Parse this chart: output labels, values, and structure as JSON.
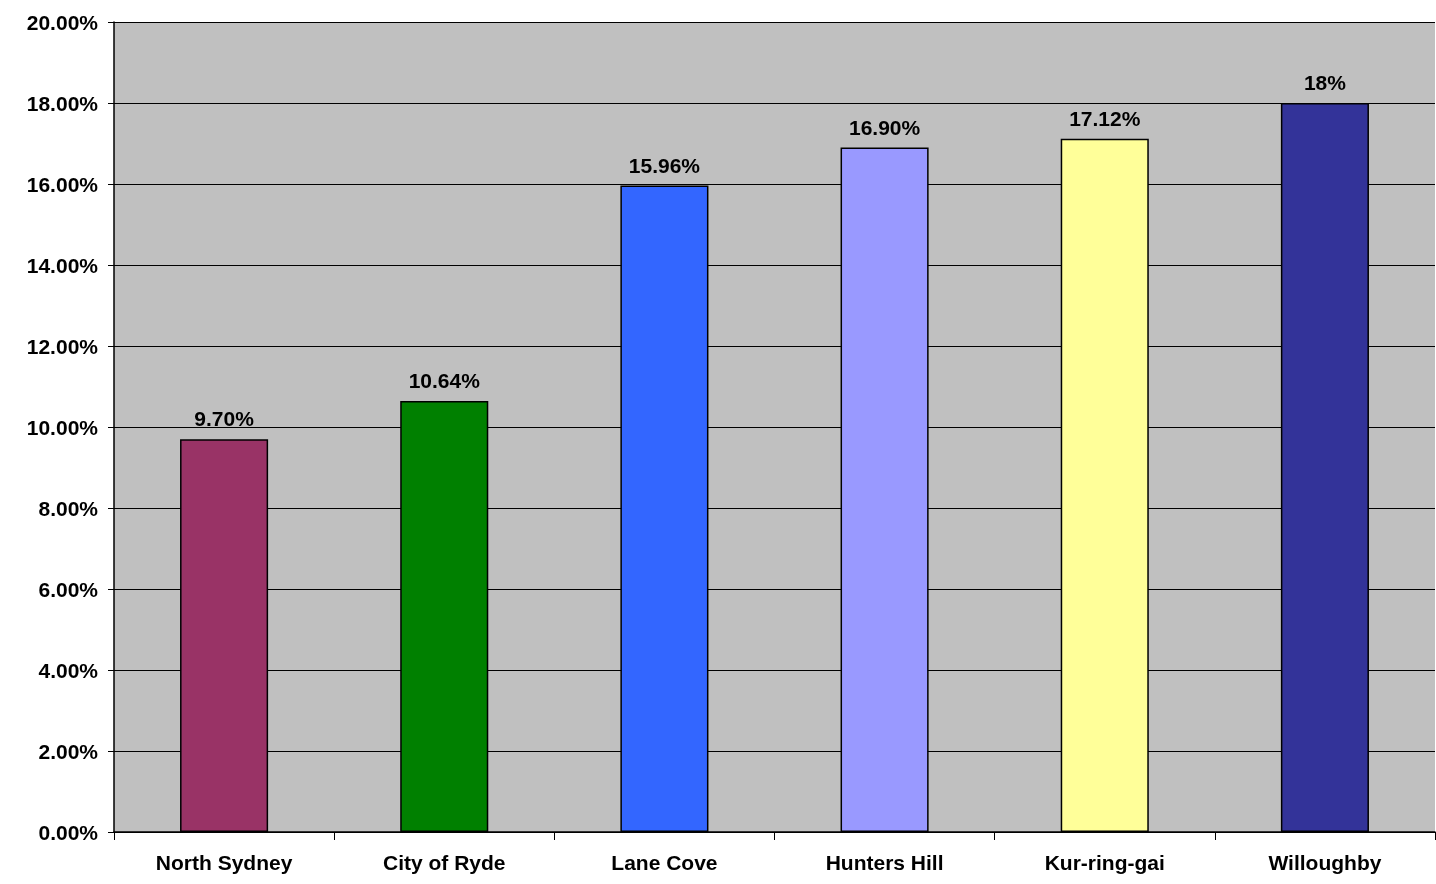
{
  "chart_data": {
    "type": "bar",
    "categories": [
      "North Sydney",
      "City of Ryde",
      "Lane Cove",
      "Hunters Hill",
      "Kur-ring-gai",
      "Willoughby"
    ],
    "values": [
      9.7,
      10.64,
      15.96,
      16.9,
      17.12,
      18
    ],
    "colors": [
      "#993366",
      "#008000",
      "#3366ff",
      "#9999ff",
      "#ffff99",
      "#333399"
    ],
    "value_labels": [
      "9.70%",
      "10.64%",
      "15.96%",
      "16.90%",
      "17.12%",
      "18%"
    ],
    "ylim": [
      0,
      20
    ],
    "yticks": [
      {
        "value": 0,
        "label": "0.00%"
      },
      {
        "value": 2,
        "label": "2.00%"
      },
      {
        "value": 4,
        "label": "4.00%"
      },
      {
        "value": 6,
        "label": "6.00%"
      },
      {
        "value": 8,
        "label": "8.00%"
      },
      {
        "value": 10,
        "label": "10.00%"
      },
      {
        "value": 12,
        "label": "12.00%"
      },
      {
        "value": 14,
        "label": "14.00%"
      },
      {
        "value": 16,
        "label": "16.00%"
      },
      {
        "value": 18,
        "label": "18.00%"
      },
      {
        "value": 20,
        "label": "20.00%"
      }
    ],
    "grid": "y"
  }
}
